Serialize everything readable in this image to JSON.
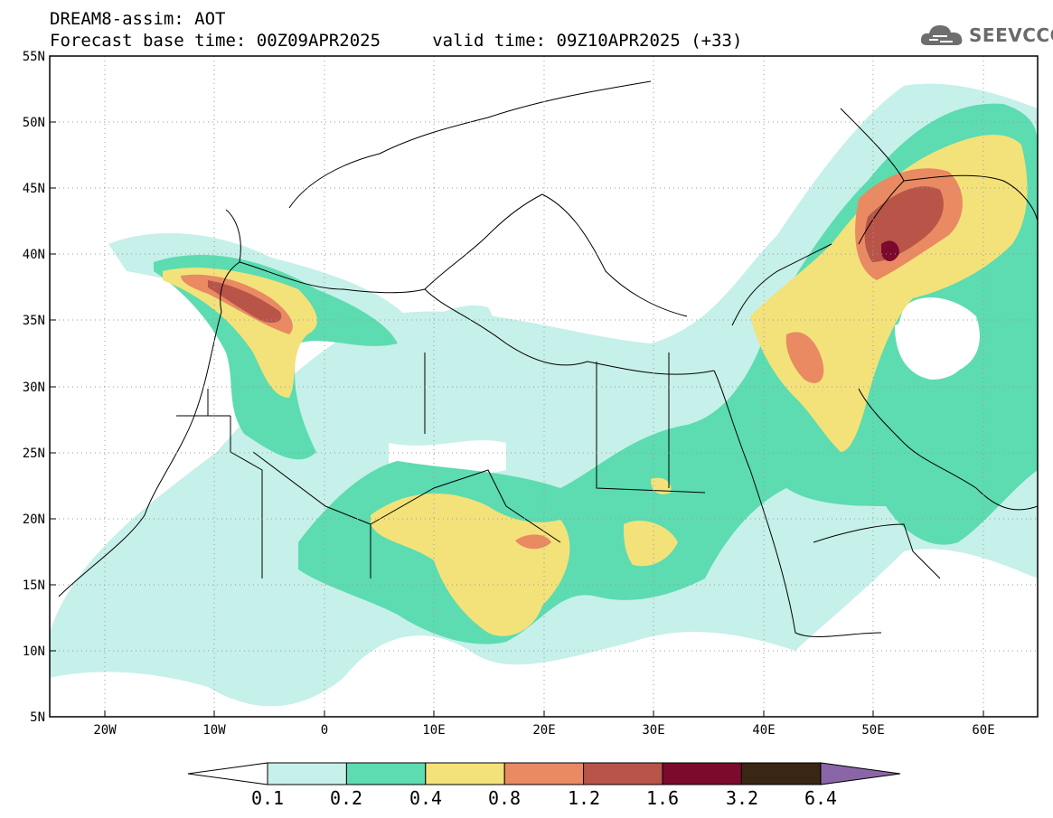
{
  "title": {
    "line1": "DREAM8-assim: AOT",
    "line2": "Forecast base time: 00Z09APR2025     valid time: 09Z10APR2025 (+33)"
  },
  "logo": {
    "text": "SEEVCCC",
    "icon": "cloud-icon"
  },
  "map": {
    "lat_labels": [
      "55N",
      "50N",
      "45N",
      "40N",
      "35N",
      "30N",
      "25N",
      "20N",
      "15N",
      "10N",
      "5N"
    ],
    "lon_labels": [
      "20W",
      "10W",
      "0",
      "10E",
      "20E",
      "30E",
      "40E",
      "50E",
      "60E"
    ],
    "lon_range": [
      -25,
      65
    ],
    "lat_range": [
      5,
      55
    ],
    "gridlines": "dotted"
  },
  "colorbar": {
    "labels": [
      "0.1",
      "0.2",
      "0.4",
      "0.8",
      "1.2",
      "1.6",
      "3.2",
      "6.4"
    ],
    "colors": [
      "#c6f0ea",
      "#5cdcb0",
      "#f3e27a",
      "#e98a63",
      "#b85548",
      "#7b0a2c",
      "#3a2615",
      "#8a66a8"
    ]
  }
}
